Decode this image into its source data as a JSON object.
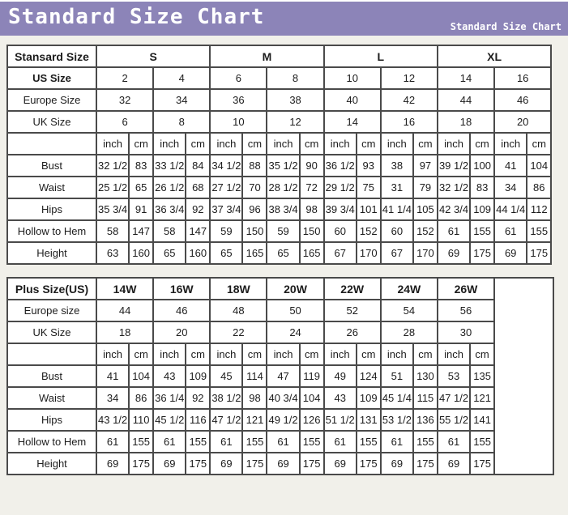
{
  "page": {
    "background_color": "#f1f0ea"
  },
  "header": {
    "title": "Standard Size Chart",
    "subtitle": "Standard Size Chart",
    "background_color": "#8c84b8",
    "text_color": "#ffffff"
  },
  "standard_table": {
    "corner_label": "Stansard Size",
    "size_groups": [
      "S",
      "M",
      "L",
      "XL"
    ],
    "head_rows": [
      {
        "label": "US Size",
        "bold": true,
        "values": [
          "2",
          "4",
          "6",
          "8",
          "10",
          "12",
          "14",
          "16"
        ]
      },
      {
        "label": "Europe Size",
        "bold": false,
        "values": [
          "32",
          "34",
          "36",
          "38",
          "40",
          "42",
          "44",
          "46"
        ]
      },
      {
        "label": "UK Size",
        "bold": false,
        "values": [
          "6",
          "8",
          "10",
          "12",
          "14",
          "16",
          "18",
          "20"
        ]
      }
    ],
    "unit_labels": [
      "inch",
      "cm"
    ],
    "unit_pair_count": 8,
    "measure_rows": [
      {
        "label": "Bust",
        "values": [
          "32 1/2",
          "83",
          "33 1/2",
          "84",
          "34 1/2",
          "88",
          "35 1/2",
          "90",
          "36 1/2",
          "93",
          "38",
          "97",
          "39 1/2",
          "100",
          "41",
          "104"
        ]
      },
      {
        "label": "Waist",
        "values": [
          "25 1/2",
          "65",
          "26 1/2",
          "68",
          "27 1/2",
          "70",
          "28 1/2",
          "72",
          "29 1/2",
          "75",
          "31",
          "79",
          "32 1/2",
          "83",
          "34",
          "86"
        ]
      },
      {
        "label": "Hips",
        "values": [
          "35 3/4",
          "91",
          "36 3/4",
          "92",
          "37 3/4",
          "96",
          "38 3/4",
          "98",
          "39 3/4",
          "101",
          "41 1/4",
          "105",
          "42 3/4",
          "109",
          "44 1/4",
          "112"
        ]
      },
      {
        "label": "Hollow to Hem",
        "values": [
          "58",
          "147",
          "58",
          "147",
          "59",
          "150",
          "59",
          "150",
          "60",
          "152",
          "60",
          "152",
          "61",
          "155",
          "61",
          "155"
        ]
      },
      {
        "label": "Height",
        "values": [
          "63",
          "160",
          "65",
          "160",
          "65",
          "165",
          "65",
          "165",
          "67",
          "170",
          "67",
          "170",
          "69",
          "175",
          "69",
          "175"
        ]
      }
    ]
  },
  "plus_table": {
    "corner_label": "Plus Size(US)",
    "size_groups": [
      "14W",
      "16W",
      "18W",
      "20W",
      "22W",
      "24W",
      "26W"
    ],
    "head_rows": [
      {
        "label": "Europe size",
        "bold": false,
        "values": [
          "44",
          "46",
          "48",
          "50",
          "52",
          "54",
          "56"
        ]
      },
      {
        "label": "UK Size",
        "bold": false,
        "values": [
          "18",
          "20",
          "22",
          "24",
          "26",
          "28",
          "30"
        ]
      }
    ],
    "unit_labels": [
      "inch",
      "cm"
    ],
    "unit_pair_count": 7,
    "has_trailing_empty_column": true,
    "measure_rows": [
      {
        "label": "Bust",
        "values": [
          "41",
          "104",
          "43",
          "109",
          "45",
          "114",
          "47",
          "119",
          "49",
          "124",
          "51",
          "130",
          "53",
          "135"
        ]
      },
      {
        "label": "Waist",
        "values": [
          "34",
          "86",
          "36 1/4",
          "92",
          "38 1/2",
          "98",
          "40 3/4",
          "104",
          "43",
          "109",
          "45 1/4",
          "115",
          "47 1/2",
          "121"
        ]
      },
      {
        "label": "Hips",
        "values": [
          "43 1/2",
          "110",
          "45 1/2",
          "116",
          "47 1/2",
          "121",
          "49 1/2",
          "126",
          "51 1/2",
          "131",
          "53 1/2",
          "136",
          "55 1/2",
          "141"
        ]
      },
      {
        "label": "Hollow to Hem",
        "values": [
          "61",
          "155",
          "61",
          "155",
          "61",
          "155",
          "61",
          "155",
          "61",
          "155",
          "61",
          "155",
          "61",
          "155"
        ]
      },
      {
        "label": "Height",
        "values": [
          "69",
          "175",
          "69",
          "175",
          "69",
          "175",
          "69",
          "175",
          "69",
          "175",
          "69",
          "175",
          "69",
          "175"
        ]
      }
    ]
  }
}
